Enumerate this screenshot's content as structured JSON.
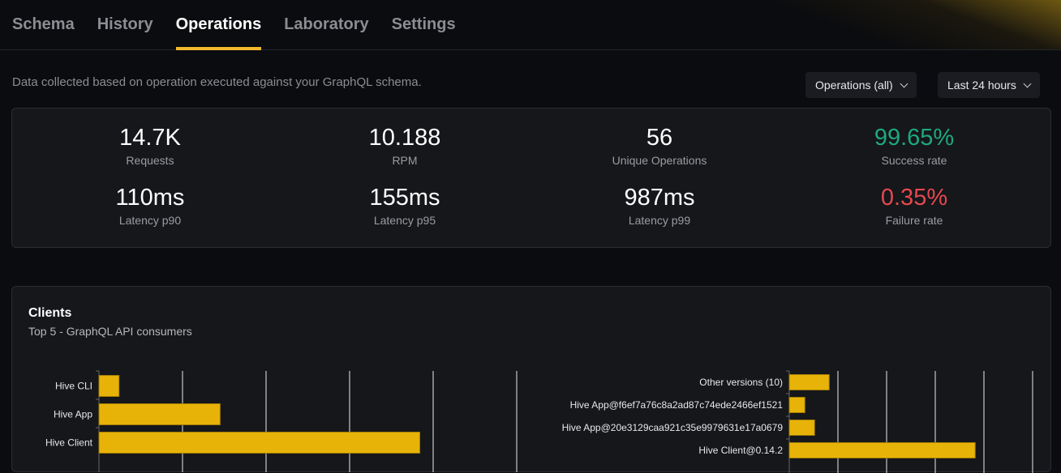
{
  "tabs": [
    "Schema",
    "History",
    "Operations",
    "Laboratory",
    "Settings"
  ],
  "active_tab": "Operations",
  "description": "Data collected based on operation executed against your GraphQL schema.",
  "filters": {
    "operations": "Operations (all)",
    "period": "Last 24 hours"
  },
  "stats": [
    {
      "value": "14.7K",
      "label": "Requests"
    },
    {
      "value": "10.188",
      "label": "RPM"
    },
    {
      "value": "56",
      "label": "Unique Operations"
    },
    {
      "value": "99.65%",
      "label": "Success rate",
      "color": "#1ea97c"
    },
    {
      "value": "110ms",
      "label": "Latency p90"
    },
    {
      "value": "155ms",
      "label": "Latency p95"
    },
    {
      "value": "987ms",
      "label": "Latency p99"
    },
    {
      "value": "0.35%",
      "label": "Failure rate",
      "color": "#e5484d"
    }
  ],
  "clients": {
    "title": "Clients",
    "subtitle": "Top 5 - GraphQL API consumers"
  },
  "chart_data": [
    {
      "type": "bar",
      "orientation": "horizontal",
      "categories": [
        "Hive CLI",
        "Hive App",
        "Hive Client"
      ],
      "values": [
        0.24,
        1.45,
        3.84
      ],
      "grid": true,
      "bar_color": "#e8b308"
    },
    {
      "type": "bar",
      "orientation": "horizontal",
      "categories": [
        "Other versions (10)",
        "Hive App@f6ef7a76c8a2ad87c74ede2466ef1521",
        "Hive App@20e3129caa921c35e9979631e17a0679",
        "Hive Client@0.14.2"
      ],
      "values": [
        0.82,
        0.32,
        0.52,
        3.82
      ],
      "grid": true,
      "bar_color": "#e8b308"
    }
  ]
}
